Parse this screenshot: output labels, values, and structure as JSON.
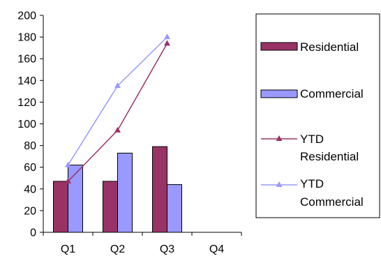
{
  "chart_data": {
    "type": "bar",
    "categories": [
      "Q1",
      "Q2",
      "Q3",
      "Q4"
    ],
    "ylim": [
      0,
      200
    ],
    "yticks": [
      0,
      20,
      40,
      60,
      80,
      100,
      120,
      140,
      160,
      180,
      200
    ],
    "grid": false,
    "legend_position": "right",
    "bar_series": [
      {
        "name": "Residential",
        "color": "#993366",
        "values": [
          47,
          47,
          79,
          null
        ]
      },
      {
        "name": "Commercial",
        "color": "#9999ff",
        "values": [
          62,
          73,
          44,
          null
        ]
      }
    ],
    "line_series": [
      {
        "name_lines": [
          "YTD",
          "Residential"
        ],
        "color": "#993366",
        "values": [
          47,
          94,
          174,
          null
        ]
      },
      {
        "name_lines": [
          "YTD",
          "Commercial"
        ],
        "color": "#9999ff",
        "values": [
          62,
          135,
          180,
          null
        ]
      }
    ],
    "title": "",
    "xlabel": "",
    "ylabel": ""
  }
}
